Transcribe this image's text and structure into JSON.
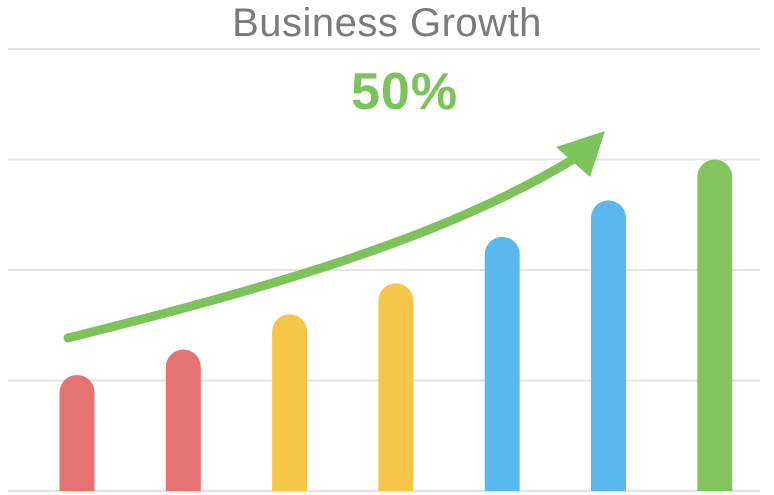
{
  "chart_data": {
    "type": "bar",
    "title": "Business Growth",
    "annotation": "50%",
    "categories": [
      "",
      "",
      "",
      "",
      "",
      "",
      ""
    ],
    "values": [
      1.05,
      1.28,
      1.6,
      1.88,
      2.3,
      2.63,
      3.0
    ],
    "bar_colors": [
      "#e57373",
      "#e57373",
      "#f7c548",
      "#f7c548",
      "#5bb8ee",
      "#5bb8ee",
      "#82c55f"
    ],
    "ylim": [
      0,
      4
    ],
    "grid": true,
    "trend_arrow": true,
    "colors": {
      "grid": "#e4e4e4",
      "arrow": "#7dc35b",
      "title": "#7b7b7b"
    }
  }
}
